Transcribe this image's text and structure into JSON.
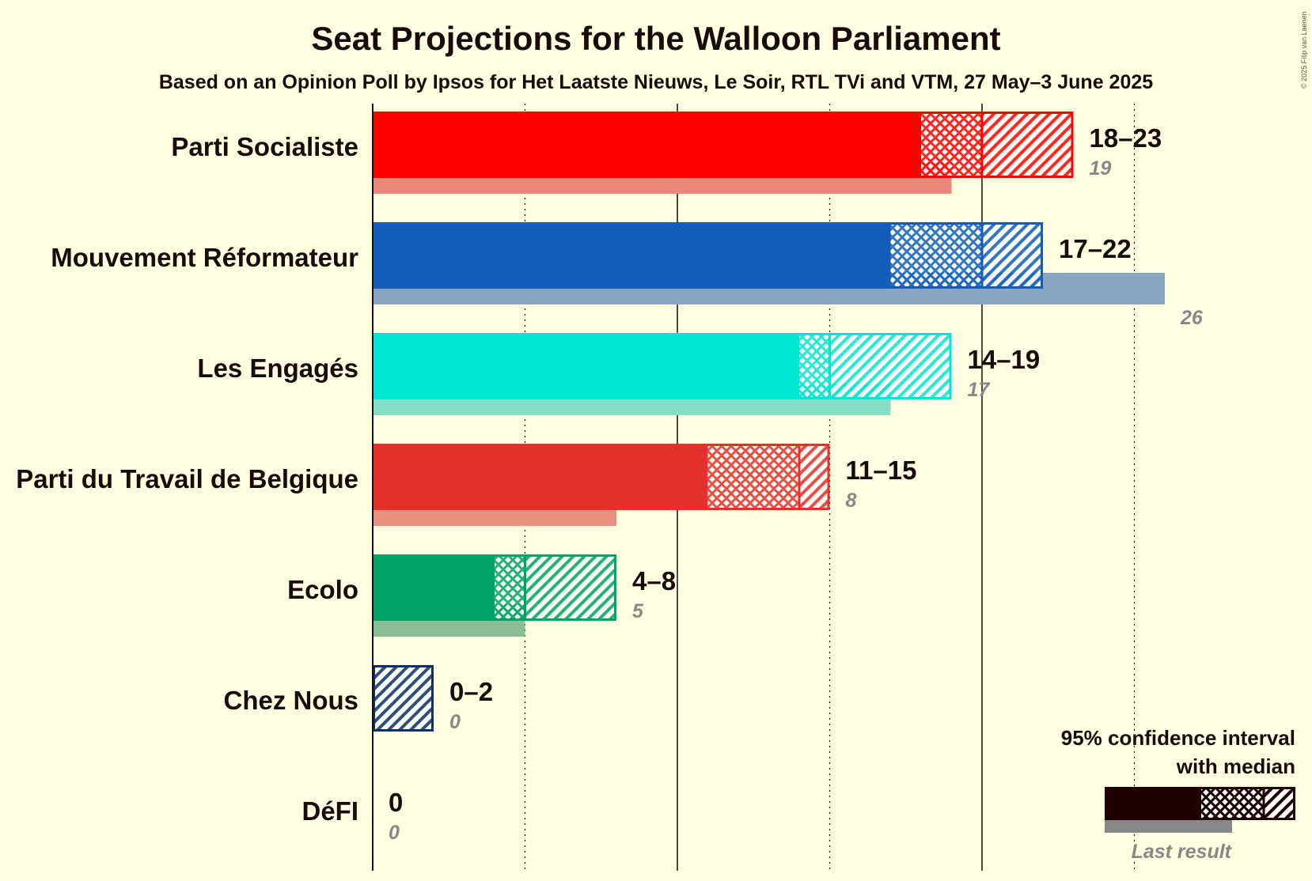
{
  "chart_data": {
    "type": "bar",
    "title": "Seat Projections for the Walloon Parliament",
    "subtitle": "Based on an Opinion Poll by Ipsos for Het Laatste Nieuws, Le Soir, RTL TVi and VTM, 27 May–3 June 2025",
    "copyright": "© 2025 Filip van Laenen",
    "xlim": [
      0,
      26
    ],
    "gridlines": [
      5,
      10,
      15,
      20,
      25
    ],
    "major_gridlines": [
      10,
      20
    ],
    "series": [
      {
        "name": "Parti Socialiste",
        "color": "#FF0000",
        "last_color": "#E8877A",
        "ci_low": 18,
        "median": 20,
        "ci_high": 23,
        "range_label": "18–23",
        "last_result": 19,
        "last_label": "19"
      },
      {
        "name": "Mouvement Réformateur",
        "color": "#115DB9",
        "last_color": "#8AA5BF",
        "ci_low": 17,
        "median": 20,
        "ci_high": 22,
        "range_label": "17–22",
        "last_result": 26,
        "last_label": "26"
      },
      {
        "name": "Les Engagés",
        "color": "#00E6D2",
        "last_color": "#84DEC6",
        "ci_low": 14,
        "median": 15,
        "ci_high": 19,
        "range_label": "14–19",
        "last_result": 17,
        "last_label": "17"
      },
      {
        "name": "Parti du Travail de Belgique",
        "color": "#E4312B",
        "last_color": "#E7907F",
        "ci_low": 11,
        "median": 14,
        "ci_high": 15,
        "range_label": "11–15",
        "last_result": 8,
        "last_label": "8"
      },
      {
        "name": "Ecolo",
        "color": "#00A366",
        "last_color": "#8BBD97",
        "ci_low": 4,
        "median": 5,
        "ci_high": 8,
        "range_label": "4–8",
        "last_result": 5,
        "last_label": "5"
      },
      {
        "name": "Chez Nous",
        "color": "#0B3266",
        "last_color": "#8A8A8A",
        "ci_low": 0,
        "median": 0,
        "ci_high": 2,
        "range_label": "0–2",
        "last_result": 0,
        "last_label": "0"
      },
      {
        "name": "DéFI",
        "color": "#DD0081",
        "last_color": "#8A8A8A",
        "ci_low": 0,
        "median": 0,
        "ci_high": 0,
        "range_label": "0",
        "last_result": 0,
        "last_label": "0"
      }
    ],
    "legend": {
      "placement": "bottom-right",
      "title_line1": "95% confidence interval",
      "title_line2": "with median",
      "last_result_label": "Last result",
      "color": "#1E0000"
    }
  }
}
